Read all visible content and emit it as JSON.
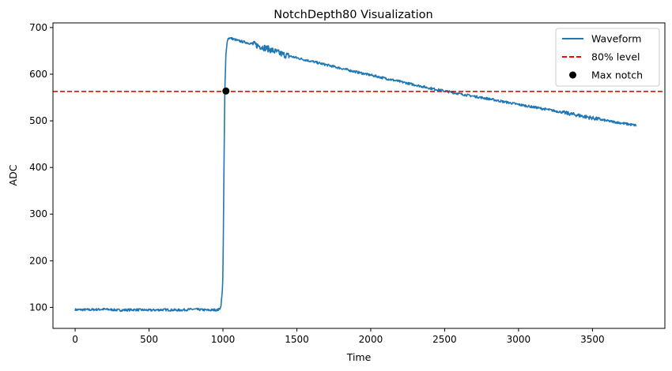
{
  "chart_data": {
    "type": "line",
    "title": "NotchDepth80 Visualization",
    "xlabel": "Time",
    "ylabel": "ADC",
    "xlim": [
      -150,
      3990
    ],
    "ylim": [
      55,
      710
    ],
    "xticks": [
      0,
      500,
      1000,
      1500,
      2000,
      2500,
      3000,
      3500
    ],
    "yticks": [
      100,
      200,
      300,
      400,
      500,
      600,
      700
    ],
    "grid": false,
    "legend_position": "top-right",
    "series": [
      {
        "name": "Waveform",
        "kind": "line",
        "color": "#1f77b4",
        "x": [
          0,
          100,
          200,
          300,
          400,
          500,
          600,
          700,
          800,
          900,
          970,
          985,
          995,
          1000,
          1005,
          1012,
          1020,
          1030,
          1045,
          1100,
          1200,
          1300,
          1400,
          1500,
          1700,
          1900,
          2000,
          2200,
          2400,
          2600,
          2800,
          3000,
          3200,
          3400,
          3600,
          3800
        ],
        "y": [
          95,
          95,
          96,
          94,
          95,
          94,
          95,
          94,
          96,
          94,
          95,
          100,
          130,
          170,
          330,
          560,
          640,
          675,
          678,
          672,
          665,
          655,
          643,
          635,
          620,
          605,
          598,
          584,
          570,
          558,
          547,
          535,
          524,
          512,
          500,
          490
        ]
      },
      {
        "name": "80% level",
        "kind": "hline",
        "color": "#ff0000",
        "dash": true,
        "y": 563
      },
      {
        "name": "Max notch",
        "kind": "point",
        "color": "#000000",
        "x": [
          1020
        ],
        "y": [
          564
        ]
      }
    ]
  }
}
